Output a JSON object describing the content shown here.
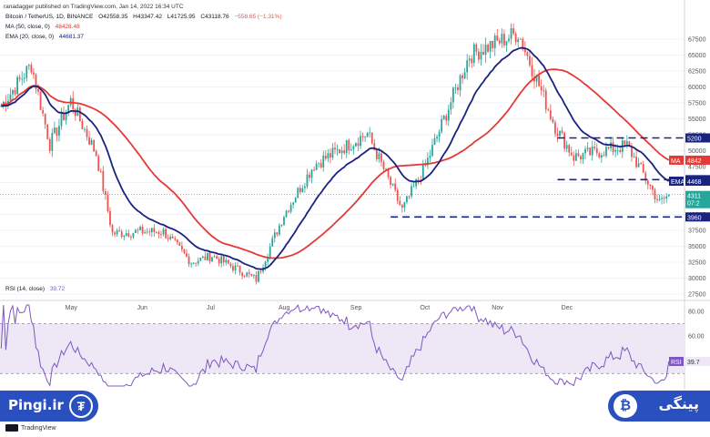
{
  "publisher": "ranadagger published on TradingView.com, Jan 14, 2022 16:34 UTC",
  "legend": {
    "symbol": "Bitcoin / TetherUS, 1D, BINANCE",
    "open": "O42558.35",
    "high": "H43347.42",
    "low": "L41725.95",
    "close": "C43118.76",
    "change": "−558.65 (−1.31%)",
    "ma": "MA (50, close, 0)",
    "ma_value": "48428.48",
    "ema": "EMA (20, close, 0)",
    "ema_value": "44681.37",
    "rsi": "RSI (14, close)",
    "rsi_value": "39.72"
  },
  "colors": {
    "up": "#26a69a",
    "down": "#ef5350",
    "ma": "#e53935",
    "ema": "#1a237e",
    "rsi": "#7e57c2",
    "level": "#1a237e"
  },
  "price_tags": {
    "level_high": "5200",
    "ema_tag_value": "4545",
    "ma_tag": "MA",
    "ma_tag_value": "4842",
    "ema_tag": "EMA",
    "ema_current": "4468",
    "last_price": "4311",
    "countdown": "07:2",
    "level_low": "3960",
    "rsi_tag": "RSI",
    "rsi_tag_value": "39.7"
  },
  "brand": {
    "left_text": "Pingi.ir",
    "left_icon": "tether-icon",
    "right_text": "پینگی",
    "right_icon": "bitcoin-icon",
    "tradingview": "TradingView"
  },
  "chart_data": [
    {
      "type": "candlestick",
      "title": "Bitcoin / TetherUS, 1D, BINANCE",
      "y_ticks": [
        "67500",
        "65000",
        "62500",
        "60000",
        "57500",
        "55000",
        "52500",
        "50000",
        "47500",
        "45000",
        "42500",
        "40000",
        "37500",
        "35000",
        "32500",
        "30000",
        "27500"
      ],
      "x_ticks": [
        "May",
        "Jun",
        "Jul",
        "Aug",
        "Sep",
        "Oct",
        "Nov",
        "Dec"
      ],
      "ylim": [
        27500,
        67500
      ],
      "horizontal_levels": [
        52000,
        45450,
        39600
      ],
      "approx_path": [
        {
          "x": "Apr 01",
          "close": 57000
        },
        {
          "x": "Apr 14",
          "close": 63500
        },
        {
          "x": "Apr 22",
          "close": 51000
        },
        {
          "x": "May 01",
          "close": 57800
        },
        {
          "x": "May 12",
          "close": 49500
        },
        {
          "x": "May 19",
          "close": 37000
        },
        {
          "x": "May 31",
          "close": 37300
        },
        {
          "x": "Jun 10",
          "close": 37300
        },
        {
          "x": "Jun 22",
          "close": 32500
        },
        {
          "x": "Jul 01",
          "close": 33500
        },
        {
          "x": "Jul 20",
          "close": 29800
        },
        {
          "x": "Aug 01",
          "close": 40000
        },
        {
          "x": "Aug 14",
          "close": 47800
        },
        {
          "x": "Sep 06",
          "close": 52700
        },
        {
          "x": "Sep 21",
          "close": 40700
        },
        {
          "x": "Oct 01",
          "close": 47600
        },
        {
          "x": "Oct 20",
          "close": 65000
        },
        {
          "x": "Nov 10",
          "close": 68500
        },
        {
          "x": "Nov 26",
          "close": 53800
        },
        {
          "x": "Dec 04",
          "close": 49000
        },
        {
          "x": "Dec 27",
          "close": 50800
        },
        {
          "x": "Jan 10",
          "close": 41800
        },
        {
          "x": "Jan 14",
          "close": 43118
        }
      ],
      "series": [
        {
          "name": "MA (50, close, 0)",
          "last": 48428.48
        },
        {
          "name": "EMA (20, close, 0)",
          "last": 44681.37
        }
      ]
    },
    {
      "type": "line",
      "title": "RSI (14, close)",
      "y_ticks": [
        "80.00",
        "60.00",
        "40.00"
      ],
      "ylim": [
        20,
        85
      ],
      "bands": [
        70,
        30
      ],
      "last": 39.72
    }
  ]
}
